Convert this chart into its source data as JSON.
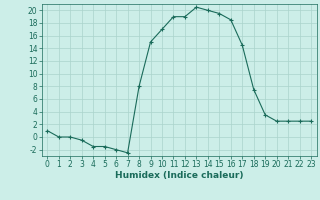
{
  "x": [
    0,
    1,
    2,
    3,
    4,
    5,
    6,
    7,
    8,
    9,
    10,
    11,
    12,
    13,
    14,
    15,
    16,
    17,
    18,
    19,
    20,
    21,
    22,
    23
  ],
  "y": [
    1,
    0,
    0,
    -0.5,
    -1.5,
    -1.5,
    -2,
    -2.5,
    8,
    15,
    17,
    19,
    19,
    20.5,
    20,
    19.5,
    18.5,
    14.5,
    7.5,
    3.5,
    2.5,
    2.5,
    2.5,
    2.5
  ],
  "line_color": "#1a6b5a",
  "marker": "+",
  "background_color": "#cceee8",
  "grid_color": "#aad4cc",
  "xlabel": "Humidex (Indice chaleur)",
  "xlim": [
    -0.5,
    23.5
  ],
  "ylim": [
    -3,
    21
  ],
  "yticks": [
    -2,
    0,
    2,
    4,
    6,
    8,
    10,
    12,
    14,
    16,
    18,
    20
  ],
  "xticks": [
    0,
    1,
    2,
    3,
    4,
    5,
    6,
    7,
    8,
    9,
    10,
    11,
    12,
    13,
    14,
    15,
    16,
    17,
    18,
    19,
    20,
    21,
    22,
    23
  ],
  "tick_fontsize": 5.5,
  "label_fontsize": 6.5
}
